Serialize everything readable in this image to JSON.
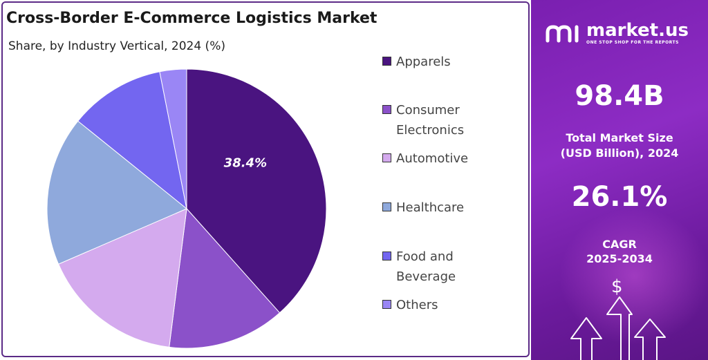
{
  "chart_data": {
    "type": "pie",
    "title": "Cross-Border E-Commerce Logistics Market",
    "subtitle": "Share, by Industry Vertical, 2024 (%)",
    "slices": [
      {
        "name": "Apparels",
        "value": 38.4,
        "color": "#4a1480",
        "label": "38.4%"
      },
      {
        "name": "Consumer Electronics",
        "value": 13.6,
        "color": "#8b51c9",
        "label": ""
      },
      {
        "name": "Automotive",
        "value": 16.5,
        "color": "#d4aaee",
        "label": ""
      },
      {
        "name": "Healthcare",
        "value": 17.3,
        "color": "#8fa9dc",
        "label": ""
      },
      {
        "name": "Food and Beverage",
        "value": 11.1,
        "color": "#7366f0",
        "label": ""
      },
      {
        "name": "Others",
        "value": 3.1,
        "color": "#9a86f5",
        "label": ""
      }
    ],
    "legend_position": "right"
  },
  "legend": {
    "items": [
      {
        "label": "Apparels"
      },
      {
        "label": "Consumer Electronics"
      },
      {
        "label": "Automotive"
      },
      {
        "label": "Healthcare"
      },
      {
        "label": "Food and Beverage"
      },
      {
        "label": "Others"
      }
    ]
  },
  "panel": {
    "brand_name": "market.us",
    "brand_tagline": "ONE STOP SHOP FOR THE REPORTS",
    "market_size_value": "98.4B",
    "market_size_label_line1": "Total Market Size",
    "market_size_label_line2": "(USD Billion), 2024",
    "cagr_value": "26.1%",
    "cagr_label_line1": "CAGR",
    "cagr_label_line2": "2025-2034",
    "currency_symbol": "$"
  },
  "colors": {
    "panel_accent": "#8d2cc4",
    "frame_border": "#5b2a86"
  },
  "icons": [
    "market-us-logo-icon",
    "dollar-icon",
    "up-arrow-icon"
  ]
}
